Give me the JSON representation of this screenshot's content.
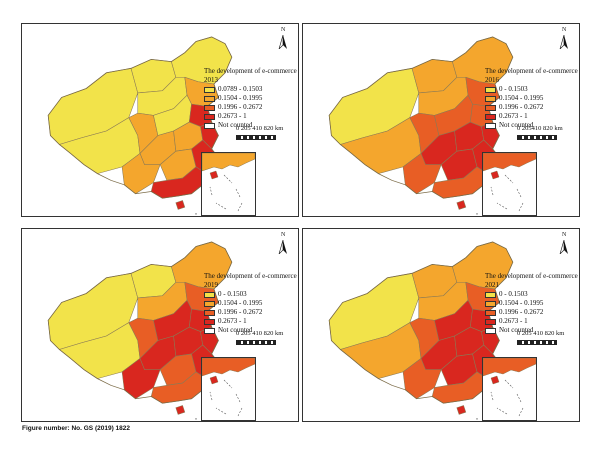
{
  "colors": {
    "c1": "#f2e34a",
    "c2": "#f4a62d",
    "c3": "#e85e25",
    "c4": "#d9271f",
    "not_counted": "#ffffff",
    "border": "#8a7a55"
  },
  "north_label": "N",
  "scale_label": "0 205 410    820 km",
  "footnote": "Figure number: No. GS (2019) 1822",
  "panels": [
    {
      "title": "The development of e-commerce",
      "year": "2013",
      "ranges": [
        "0.0789 - 0.1503",
        "0.1504 - 0.1995",
        "0.1996 - 0.2672",
        "0.2673 - 1",
        "Not counted"
      ],
      "scale_label": "0 205 410    820 km"
    },
    {
      "title": "The development of e-commerce",
      "year": "2016",
      "ranges": [
        "0 - 0.1503",
        "0.1504 - 0.1995",
        "0.1996 - 0.2672",
        "0.2673 - 1",
        "Not counted"
      ],
      "scale_label": "0 205410    820 km"
    },
    {
      "title": "The development of e-commerce",
      "year": "2019",
      "ranges": [
        "0 - 0.1503",
        "0.1504 - 0.1995",
        "0.1996 - 0.2672",
        "0.2673 - 1",
        "Not counted"
      ],
      "scale_label": "0 205 410    820 km"
    },
    {
      "title": "The development of e-commerce",
      "year": "2021",
      "ranges": [
        "0 - 0.1503",
        "0.1504 - 0.1995",
        "0.1996 - 0.2672",
        "0.2673 - 1",
        "Not counted"
      ],
      "scale_label": "0 205 410    820 km"
    }
  ]
}
